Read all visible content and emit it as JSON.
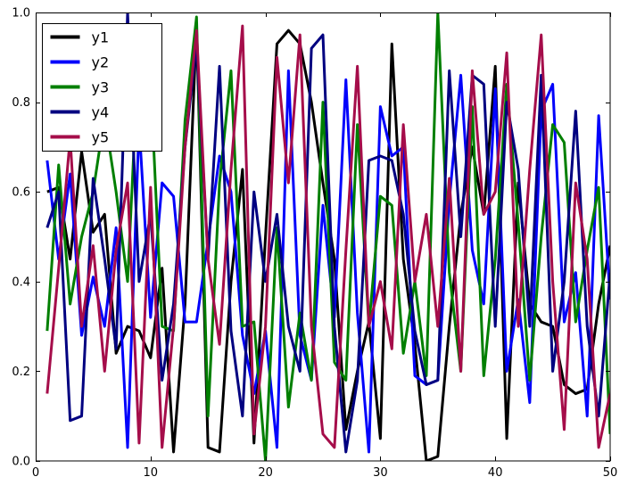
{
  "figure": {
    "background": "#ffffff",
    "axis_color": "#000000"
  },
  "chart_data": {
    "type": "line",
    "title": "",
    "xlabel": "",
    "ylabel": "",
    "xlim": [
      0,
      50
    ],
    "ylim": [
      0.0,
      1.0
    ],
    "grid": false,
    "x_tick_labels": [
      "0",
      "10",
      "20",
      "30",
      "40",
      "50"
    ],
    "x_tick_values": [
      0,
      10,
      20,
      30,
      40,
      50
    ],
    "y_tick_labels": [
      "0.0",
      "0.2",
      "0.4",
      "0.6",
      "0.8",
      "1.0"
    ],
    "y_tick_values": [
      0.0,
      0.2,
      0.4,
      0.6,
      0.8,
      1.0
    ],
    "legend": {
      "position": "upper-left",
      "entries": [
        "y1",
        "y2",
        "y3",
        "y4",
        "y5"
      ]
    },
    "x": [
      1,
      2,
      3,
      4,
      5,
      6,
      7,
      8,
      9,
      10,
      11,
      12,
      13,
      14,
      15,
      16,
      17,
      18,
      19,
      20,
      21,
      22,
      23,
      24,
      25,
      26,
      27,
      28,
      29,
      30,
      31,
      32,
      33,
      34,
      35,
      36,
      37,
      38,
      39,
      40,
      41,
      42,
      43,
      44,
      45,
      46,
      47,
      48,
      49,
      50
    ],
    "series": [
      {
        "name": "y1",
        "color": "#000000",
        "values": [
          0.6,
          0.61,
          0.45,
          0.69,
          0.51,
          0.55,
          0.24,
          0.3,
          0.29,
          0.23,
          0.43,
          0.02,
          0.35,
          0.97,
          0.03,
          0.02,
          0.4,
          0.65,
          0.04,
          0.5,
          0.93,
          0.96,
          0.93,
          0.8,
          0.62,
          0.45,
          0.07,
          0.2,
          0.31,
          0.05,
          0.93,
          0.45,
          0.26,
          0.0,
          0.01,
          0.3,
          0.55,
          0.7,
          0.55,
          0.88,
          0.05,
          0.62,
          0.35,
          0.31,
          0.3,
          0.17,
          0.15,
          0.16,
          0.35,
          0.48
        ]
      },
      {
        "name": "y2",
        "color": "#0202fb",
        "values": [
          0.67,
          0.45,
          0.64,
          0.28,
          0.41,
          0.3,
          0.52,
          0.03,
          0.75,
          0.32,
          0.62,
          0.59,
          0.31,
          0.31,
          0.49,
          0.68,
          0.6,
          0.28,
          0.15,
          0.29,
          0.03,
          0.87,
          0.28,
          0.18,
          0.57,
          0.32,
          0.85,
          0.33,
          0.02,
          0.79,
          0.68,
          0.7,
          0.19,
          0.17,
          0.18,
          0.58,
          0.86,
          0.47,
          0.35,
          0.83,
          0.2,
          0.36,
          0.13,
          0.78,
          0.84,
          0.31,
          0.42,
          0.1,
          0.77,
          0.36
        ]
      },
      {
        "name": "y3",
        "color": "#007f00",
        "values": [
          0.29,
          0.66,
          0.35,
          0.5,
          0.6,
          0.77,
          0.6,
          0.4,
          0.94,
          0.85,
          0.3,
          0.29,
          0.76,
          0.99,
          0.1,
          0.62,
          0.87,
          0.3,
          0.31,
          0.0,
          0.52,
          0.12,
          0.33,
          0.18,
          0.8,
          0.22,
          0.18,
          0.75,
          0.3,
          0.59,
          0.57,
          0.24,
          0.4,
          0.19,
          1.0,
          0.42,
          0.2,
          0.79,
          0.19,
          0.45,
          0.84,
          0.53,
          0.18,
          0.5,
          0.75,
          0.71,
          0.31,
          0.47,
          0.61,
          0.06
        ]
      },
      {
        "name": "y4",
        "color": "#000080",
        "values": [
          0.52,
          0.6,
          0.09,
          0.1,
          0.63,
          0.45,
          0.25,
          1.0,
          0.4,
          0.55,
          0.18,
          0.35,
          0.7,
          0.93,
          0.45,
          0.88,
          0.29,
          0.1,
          0.6,
          0.4,
          0.55,
          0.3,
          0.2,
          0.92,
          0.95,
          0.3,
          0.02,
          0.18,
          0.67,
          0.68,
          0.67,
          0.55,
          0.29,
          0.17,
          0.18,
          0.87,
          0.5,
          0.86,
          0.84,
          0.3,
          0.8,
          0.65,
          0.3,
          0.86,
          0.2,
          0.4,
          0.78,
          0.3,
          0.1,
          0.42
        ]
      },
      {
        "name": "y5",
        "color": "#a50d4a",
        "values": [
          0.15,
          0.43,
          0.72,
          0.3,
          0.48,
          0.2,
          0.47,
          0.62,
          0.04,
          0.61,
          0.03,
          0.3,
          0.7,
          0.96,
          0.45,
          0.26,
          0.65,
          0.97,
          0.06,
          0.3,
          0.9,
          0.62,
          0.95,
          0.3,
          0.06,
          0.03,
          0.47,
          0.88,
          0.3,
          0.4,
          0.25,
          0.75,
          0.4,
          0.55,
          0.3,
          0.63,
          0.2,
          0.87,
          0.55,
          0.6,
          0.91,
          0.3,
          0.65,
          0.95,
          0.4,
          0.07,
          0.62,
          0.45,
          0.03,
          0.15
        ]
      }
    ]
  }
}
